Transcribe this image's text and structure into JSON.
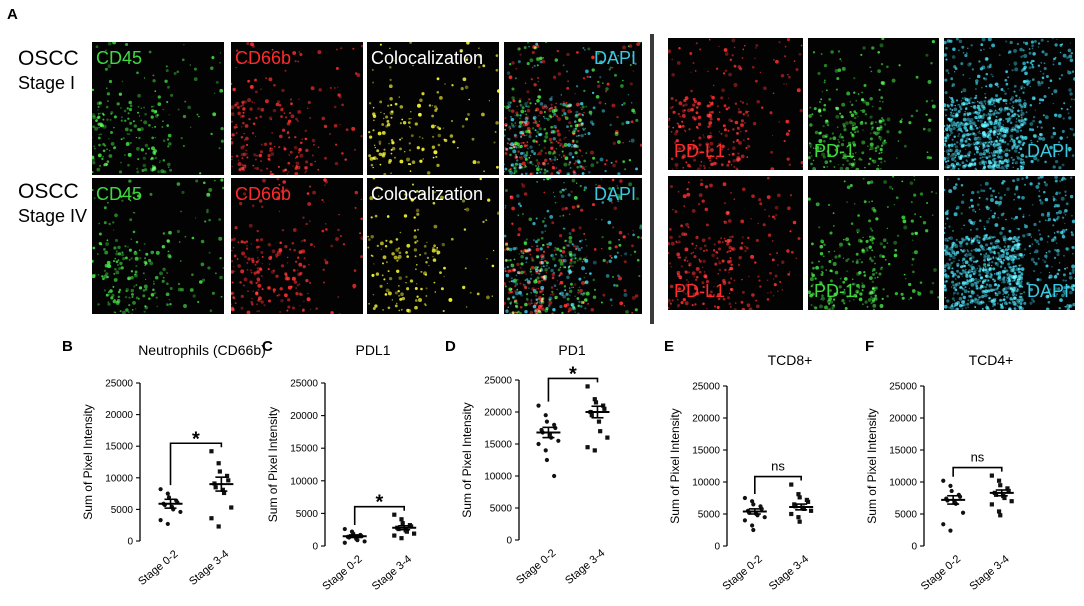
{
  "letters": {
    "A": "A",
    "B": "B",
    "C": "C",
    "D": "D",
    "E": "E",
    "F": "F"
  },
  "rows": [
    {
      "line1": "OSCC",
      "line2": "Stage I"
    },
    {
      "line1": "OSCC",
      "line2": "Stage IV"
    }
  ],
  "micro_left": [
    "CD45",
    "CD66b",
    "Colocalization",
    "DAPI"
  ],
  "micro_right": [
    "PD-L1",
    "PD-1",
    "DAPI"
  ],
  "colors": {
    "green": "#3ddc3d",
    "red": "#ff2a2a",
    "yellow": "#ffff30",
    "cyan": "#38c8e0",
    "white": "#ffffff"
  },
  "chart_data": [
    {
      "panel": "B",
      "type": "scatter",
      "title": "Neutrophils (CD66b)",
      "ylabel": "Sum of Pixel Intensity",
      "ylim": [
        0,
        25000
      ],
      "yticks": [
        0,
        5000,
        10000,
        15000,
        20000,
        25000
      ],
      "categories": [
        "Stage 0-2",
        "Stage 3-4"
      ],
      "series": [
        {
          "values": [
            8200,
            7500,
            6900,
            6400,
            6100,
            5900,
            5700,
            5400,
            5000,
            4600,
            3300,
            2700
          ],
          "mean": 5900,
          "sem": 700
        },
        {
          "values": [
            14200,
            12300,
            11000,
            10300,
            9600,
            9100,
            8500,
            8100,
            7600,
            5300,
            3600,
            2300
          ],
          "mean": 9000,
          "sem": 1100
        }
      ],
      "significance": "*"
    },
    {
      "panel": "C",
      "type": "scatter",
      "title": "PDL1",
      "ylabel": "Sum of Pixel Intensity",
      "ylim": [
        0,
        25000
      ],
      "yticks": [
        0,
        5000,
        10000,
        15000,
        20000,
        25000
      ],
      "categories": [
        "Stage 0-2",
        "Stage 3-4"
      ],
      "series": [
        {
          "values": [
            2600,
            2200,
            1900,
            1700,
            1500,
            1400,
            1300,
            1100,
            900,
            700,
            500
          ],
          "mean": 1500,
          "sem": 200
        },
        {
          "values": [
            4800,
            4100,
            3500,
            3200,
            3000,
            2800,
            2600,
            2400,
            2200,
            1900,
            1600,
            1200
          ],
          "mean": 2800,
          "sem": 300
        }
      ],
      "significance": "*"
    },
    {
      "panel": "D",
      "type": "scatter",
      "title": "PD1",
      "ylabel": "Sum of Pixel Intensity",
      "ylim": [
        0,
        25000
      ],
      "yticks": [
        0,
        5000,
        10000,
        15000,
        20000,
        25000
      ],
      "categories": [
        "Stage 0-2",
        "Stage 3-4"
      ],
      "series": [
        {
          "values": [
            21000,
            19500,
            18500,
            18000,
            17500,
            17200,
            16800,
            16500,
            16000,
            15500,
            15000,
            14000,
            12500,
            10000
          ],
          "mean": 16800,
          "sem": 800
        },
        {
          "values": [
            24000,
            22000,
            21500,
            21000,
            20500,
            20000,
            19500,
            18500,
            17000,
            16000,
            14500,
            14000
          ],
          "mean": 20000,
          "sem": 900
        }
      ],
      "significance": "*"
    },
    {
      "panel": "E",
      "type": "scatter",
      "title": "TCD8+",
      "ylabel": "Sum of Pixel Intensity",
      "ylim": [
        0,
        25000
      ],
      "yticks": [
        0,
        5000,
        10000,
        15000,
        20000,
        25000
      ],
      "categories": [
        "Stage 0-2",
        "Stage 3-4"
      ],
      "series": [
        {
          "values": [
            7500,
            7000,
            6500,
            6200,
            5800,
            5500,
            5200,
            5000,
            4800,
            4500,
            4000,
            3200,
            2500
          ],
          "mean": 5400,
          "sem": 400
        },
        {
          "values": [
            9600,
            8100,
            7600,
            7200,
            6900,
            6500,
            6200,
            6000,
            5800,
            5500,
            5000,
            4500,
            3800
          ],
          "mean": 6100,
          "sem": 450
        }
      ],
      "significance": "ns"
    },
    {
      "panel": "F",
      "type": "scatter",
      "title": "TCD4+",
      "ylabel": "Sum of Pixel Intensity",
      "ylim": [
        0,
        25000
      ],
      "yticks": [
        0,
        5000,
        10000,
        15000,
        20000,
        25000
      ],
      "categories": [
        "Stage 0-2",
        "Stage 3-4"
      ],
      "series": [
        {
          "values": [
            10200,
            9400,
            8600,
            8000,
            7700,
            7400,
            7100,
            6900,
            6600,
            5200,
            3400,
            2400
          ],
          "mean": 7200,
          "sem": 650
        },
        {
          "values": [
            11000,
            10200,
            9500,
            9000,
            8600,
            8300,
            8000,
            7800,
            7500,
            7000,
            6500,
            5400,
            4800
          ],
          "mean": 8300,
          "sem": 450
        }
      ],
      "significance": "ns"
    }
  ]
}
